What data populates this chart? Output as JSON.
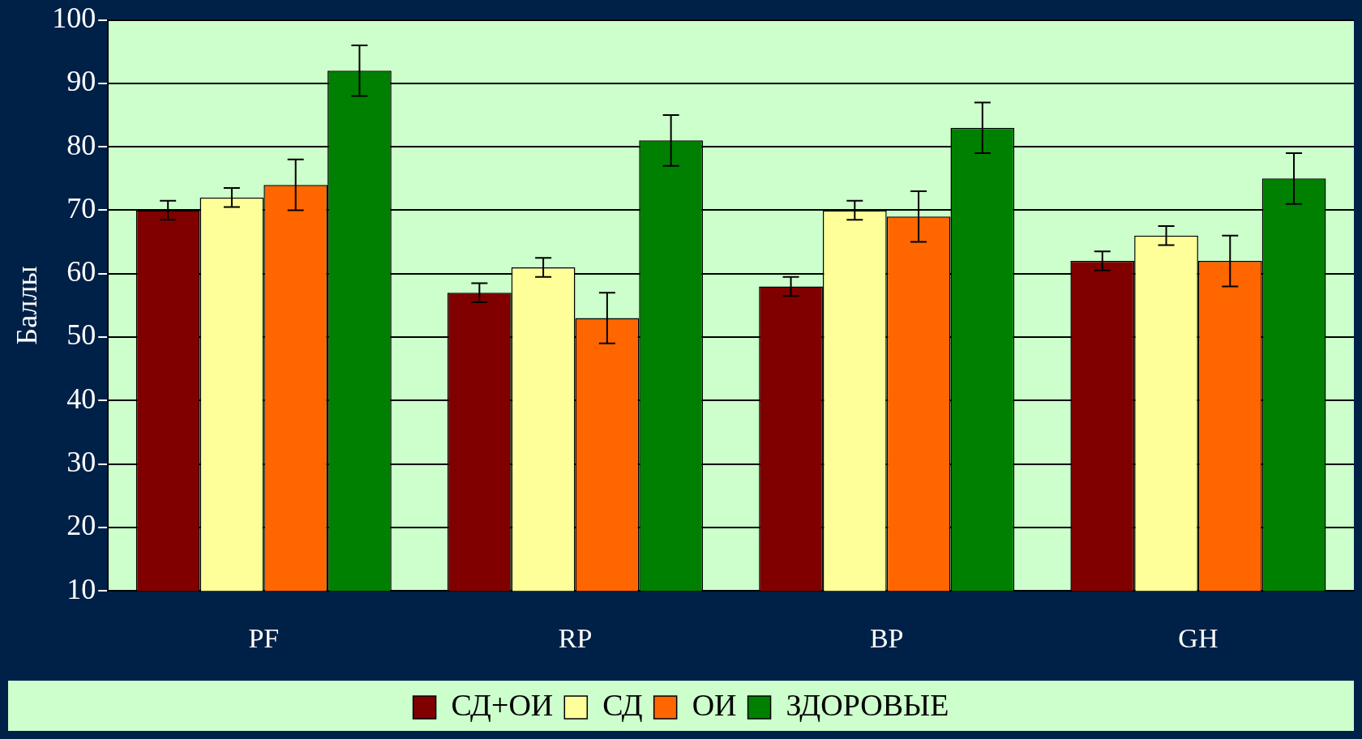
{
  "chart_data": {
    "type": "bar",
    "ylabel": "Баллы",
    "categories": [
      "PF",
      "RP",
      "BP",
      "GH"
    ],
    "series": [
      {
        "name": "СД+ОИ",
        "color": "#800000",
        "values": [
          70,
          57,
          58,
          62
        ],
        "errors": [
          1.5,
          1.5,
          1.5,
          1.5
        ]
      },
      {
        "name": "СД",
        "color": "#ffff99",
        "values": [
          72,
          61,
          70,
          66
        ],
        "errors": [
          1.5,
          1.5,
          1.5,
          1.5
        ]
      },
      {
        "name": "ОИ",
        "color": "#ff6600",
        "values": [
          74,
          53,
          69,
          62
        ],
        "errors": [
          4,
          4,
          4,
          4
        ]
      },
      {
        "name": "ЗДОРОВЫЕ",
        "color": "#008000",
        "values": [
          92,
          81,
          83,
          75
        ],
        "errors": [
          4,
          4,
          4,
          4
        ]
      }
    ],
    "ylim": [
      10,
      100
    ],
    "yticks": [
      10,
      20,
      30,
      40,
      50,
      60,
      70,
      80,
      90,
      100
    ],
    "grid": "y",
    "legend": "bottom"
  }
}
